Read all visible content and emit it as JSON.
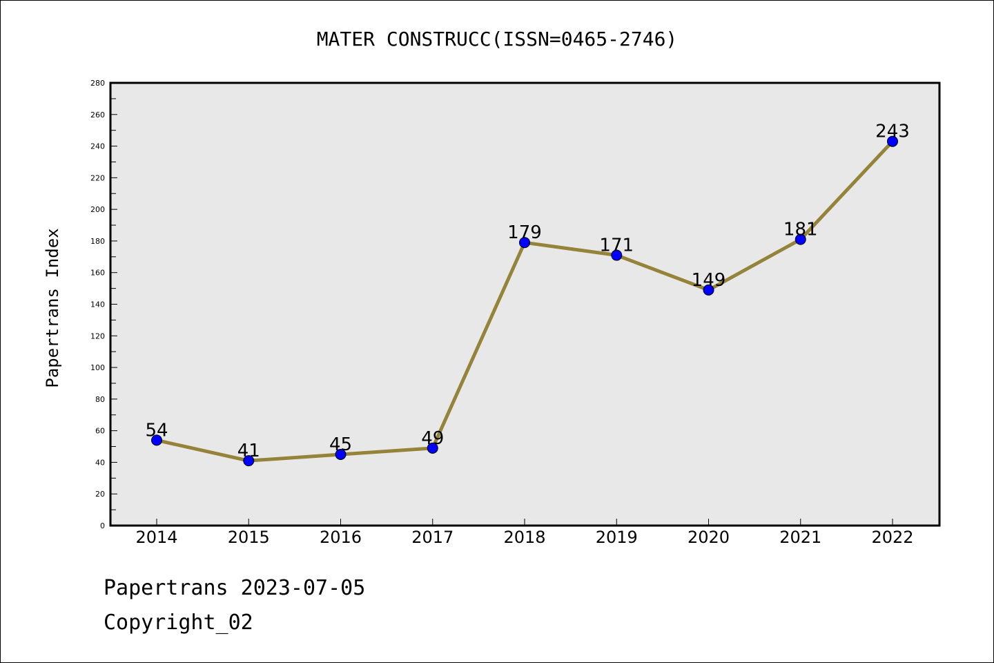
{
  "chart_data": {
    "type": "line",
    "title": "MATER CONSTRUCC(ISSN=0465-2746)",
    "xlabel": "",
    "ylabel": "Papertrans Index",
    "categories": [
      "2014",
      "2015",
      "2016",
      "2017",
      "2018",
      "2019",
      "2020",
      "2021",
      "2022"
    ],
    "values": [
      54,
      41,
      45,
      49,
      179,
      171,
      149,
      181,
      243
    ],
    "data_labels": [
      "54",
      "41",
      "45",
      "49",
      "179",
      "171",
      "149",
      "181",
      "243"
    ],
    "ylim": [
      0,
      280
    ],
    "yticks": [
      0,
      20,
      40,
      60,
      80,
      100,
      120,
      140,
      160,
      180,
      200,
      220,
      240,
      260,
      280
    ],
    "ytick_labels": [
      "0",
      "20",
      "40",
      "60",
      "80",
      "100",
      "120",
      "140",
      "160",
      "180",
      "200",
      "220",
      "240",
      "260",
      "280"
    ],
    "grid": false,
    "legend": "none",
    "colors": {
      "line": "#948338",
      "marker": "#0000ff",
      "plot_background": "#e8e8e8"
    }
  },
  "footer": {
    "date_line": "Papertrans 2023-07-05",
    "copyright": "Copyright_02"
  }
}
